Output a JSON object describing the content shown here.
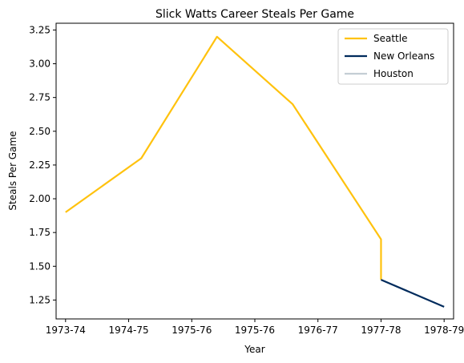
{
  "chart_data": {
    "type": "line",
    "title": "Slick Watts Career Steals Per Game",
    "xlabel": "Year",
    "ylabel": "Steals Per Game",
    "x_ticks": [
      "1973-74",
      "1974-75",
      "1975-76",
      "1975-76",
      "1976-77",
      "1977-78",
      "1978-79"
    ],
    "xlim": [
      -0.15,
      6.15
    ],
    "ylim": [
      1.11,
      3.3
    ],
    "y_ticks": [
      1.25,
      1.5,
      1.75,
      2.0,
      2.25,
      2.5,
      2.75,
      3.0,
      3.25
    ],
    "y_tick_labels": [
      "1.25",
      "1.50",
      "1.75",
      "2.00",
      "2.25",
      "2.50",
      "2.75",
      "3.00",
      "3.25"
    ],
    "grid": false,
    "legend_position": "top-right",
    "series": [
      {
        "name": "Seattle",
        "color": "#FFC20E",
        "points": [
          [
            0,
            1.9
          ],
          [
            1.2,
            2.3
          ],
          [
            2.4,
            3.2
          ],
          [
            3.6,
            2.7
          ],
          [
            5.0,
            1.7
          ],
          [
            5.0,
            1.4
          ]
        ]
      },
      {
        "name": "New Orleans",
        "color": "#002B5C",
        "points": [
          [
            5.0,
            1.4
          ],
          [
            6.0,
            1.2
          ]
        ]
      },
      {
        "name": "Houston",
        "color": "#C4CED4",
        "points": []
      }
    ]
  }
}
